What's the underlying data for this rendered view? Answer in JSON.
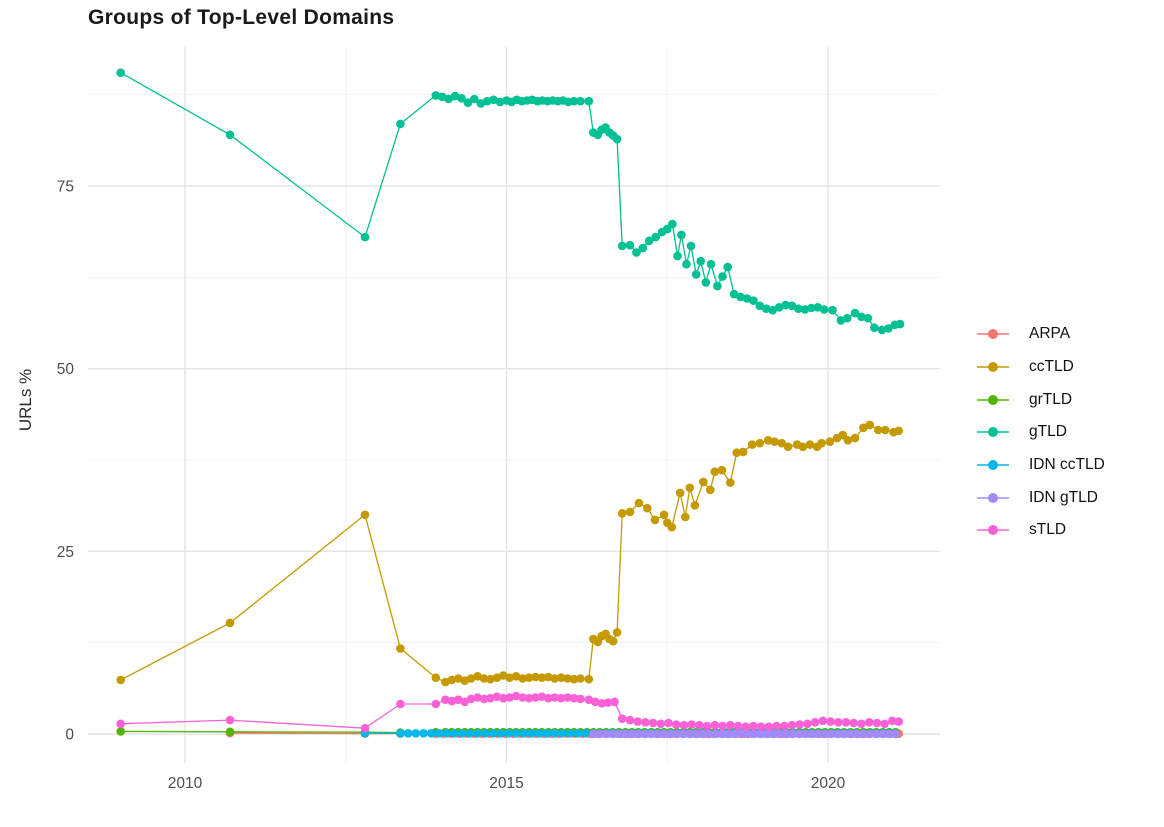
{
  "chart_data": {
    "type": "line",
    "title": "Groups of Top-Level Domains",
    "xlabel": "",
    "ylabel": "URLs %",
    "axes": {
      "x_ticks": [
        {
          "v": 2010,
          "label": "2010"
        },
        {
          "v": 2015,
          "label": "2015"
        },
        {
          "v": 2020,
          "label": "2020"
        }
      ],
      "y_ticks": [
        {
          "v": 0,
          "label": "0"
        },
        {
          "v": 25,
          "label": "25"
        },
        {
          "v": 50,
          "label": "50"
        },
        {
          "v": 75,
          "label": "75"
        }
      ],
      "x_minor": [
        2012.5,
        2017.5
      ],
      "y_minor": [
        12.5,
        37.5,
        62.5,
        87.5
      ],
      "x_domain": [
        2008.5,
        2021.8
      ],
      "y_domain": [
        -4,
        94
      ],
      "grid": "on",
      "legend_position": "right"
    },
    "series": [
      {
        "name": "ARPA",
        "slug": "arpa",
        "color": "#F8766D",
        "points": [
          [
            2010.7,
            0.12
          ],
          [
            2012.8,
            0.06
          ],
          [
            2013.35,
            0.05
          ]
        ],
        "flat_tail": {
          "from": 2013.9,
          "to": 2021.1,
          "step": 0.12,
          "value": 0.04
        }
      },
      {
        "name": "ccTLD",
        "slug": "cctld",
        "color": "#C49A00",
        "points": [
          [
            2009.0,
            7.4
          ],
          [
            2010.7,
            15.2
          ],
          [
            2012.8,
            30.0
          ],
          [
            2013.35,
            11.7
          ],
          [
            2013.9,
            7.7
          ],
          [
            2014.05,
            7.1
          ],
          [
            2014.15,
            7.4
          ],
          [
            2014.25,
            7.6
          ],
          [
            2014.35,
            7.3
          ],
          [
            2014.45,
            7.6
          ],
          [
            2014.55,
            7.9
          ],
          [
            2014.65,
            7.6
          ],
          [
            2014.75,
            7.5
          ],
          [
            2014.85,
            7.7
          ],
          [
            2014.95,
            8.0
          ],
          [
            2015.05,
            7.7
          ],
          [
            2015.15,
            7.9
          ],
          [
            2015.25,
            7.6
          ],
          [
            2015.35,
            7.7
          ],
          [
            2015.45,
            7.8
          ],
          [
            2015.55,
            7.7
          ],
          [
            2015.65,
            7.8
          ],
          [
            2015.75,
            7.6
          ],
          [
            2015.85,
            7.7
          ],
          [
            2015.95,
            7.6
          ],
          [
            2016.05,
            7.5
          ],
          [
            2016.15,
            7.6
          ],
          [
            2016.28,
            7.5
          ],
          [
            2016.35,
            13.0
          ],
          [
            2016.42,
            12.6
          ],
          [
            2016.48,
            13.4
          ],
          [
            2016.54,
            13.7
          ],
          [
            2016.6,
            13.0
          ],
          [
            2016.66,
            12.7
          ],
          [
            2016.72,
            13.9
          ],
          [
            2016.8,
            30.2
          ],
          [
            2016.92,
            30.4
          ],
          [
            2017.06,
            31.6
          ],
          [
            2017.19,
            30.9
          ],
          [
            2017.31,
            29.3
          ],
          [
            2017.45,
            30.0
          ],
          [
            2017.5,
            28.9
          ],
          [
            2017.57,
            28.3
          ],
          [
            2017.7,
            33.0
          ],
          [
            2017.78,
            29.7
          ],
          [
            2017.85,
            33.7
          ],
          [
            2017.93,
            31.3
          ],
          [
            2018.06,
            34.5
          ],
          [
            2018.17,
            33.4
          ],
          [
            2018.24,
            35.9
          ],
          [
            2018.35,
            36.1
          ],
          [
            2018.48,
            34.4
          ],
          [
            2018.58,
            38.5
          ],
          [
            2018.68,
            38.6
          ],
          [
            2018.82,
            39.6
          ],
          [
            2018.94,
            39.8
          ],
          [
            2019.07,
            40.2
          ],
          [
            2019.17,
            40.0
          ],
          [
            2019.28,
            39.8
          ],
          [
            2019.38,
            39.3
          ],
          [
            2019.52,
            39.6
          ],
          [
            2019.61,
            39.3
          ],
          [
            2019.72,
            39.6
          ],
          [
            2019.83,
            39.3
          ],
          [
            2019.9,
            39.8
          ],
          [
            2020.03,
            40.0
          ],
          [
            2020.14,
            40.5
          ],
          [
            2020.23,
            40.9
          ],
          [
            2020.31,
            40.2
          ],
          [
            2020.42,
            40.5
          ],
          [
            2020.55,
            41.9
          ],
          [
            2020.65,
            42.3
          ],
          [
            2020.78,
            41.6
          ],
          [
            2020.89,
            41.6
          ],
          [
            2021.02,
            41.3
          ],
          [
            2021.1,
            41.5
          ]
        ]
      },
      {
        "name": "grTLD",
        "slug": "grtld",
        "color": "#53B400",
        "points": [
          [
            2009.0,
            0.35
          ],
          [
            2010.7,
            0.3
          ],
          [
            2012.8,
            0.25
          ],
          [
            2013.35,
            0.2
          ],
          [
            2013.9,
            0.25
          ]
        ],
        "flat_tail": {
          "from": 2014.05,
          "to": 2021.1,
          "step": 0.1,
          "value": 0.25
        }
      },
      {
        "name": "gTLD",
        "slug": "gtld",
        "color": "#00C094",
        "points": [
          [
            2009.0,
            90.5
          ],
          [
            2010.7,
            82.0
          ],
          [
            2012.8,
            68.0
          ],
          [
            2013.35,
            83.5
          ],
          [
            2013.9,
            87.4
          ],
          [
            2014.0,
            87.2
          ],
          [
            2014.1,
            86.9
          ],
          [
            2014.2,
            87.3
          ],
          [
            2014.3,
            87.0
          ],
          [
            2014.4,
            86.4
          ],
          [
            2014.5,
            86.9
          ],
          [
            2014.6,
            86.3
          ],
          [
            2014.7,
            86.6
          ],
          [
            2014.8,
            86.8
          ],
          [
            2014.9,
            86.5
          ],
          [
            2015.0,
            86.7
          ],
          [
            2015.08,
            86.5
          ],
          [
            2015.16,
            86.8
          ],
          [
            2015.24,
            86.6
          ],
          [
            2015.32,
            86.7
          ],
          [
            2015.4,
            86.8
          ],
          [
            2015.48,
            86.6
          ],
          [
            2015.56,
            86.7
          ],
          [
            2015.64,
            86.6
          ],
          [
            2015.72,
            86.7
          ],
          [
            2015.8,
            86.6
          ],
          [
            2015.88,
            86.7
          ],
          [
            2015.96,
            86.5
          ],
          [
            2016.05,
            86.6
          ],
          [
            2016.15,
            86.6
          ],
          [
            2016.28,
            86.6
          ],
          [
            2016.35,
            82.3
          ],
          [
            2016.42,
            82.0
          ],
          [
            2016.48,
            82.7
          ],
          [
            2016.54,
            83.0
          ],
          [
            2016.6,
            82.3
          ],
          [
            2016.66,
            81.9
          ],
          [
            2016.72,
            81.4
          ],
          [
            2016.8,
            66.8
          ],
          [
            2016.92,
            66.9
          ],
          [
            2017.02,
            65.9
          ],
          [
            2017.12,
            66.5
          ],
          [
            2017.22,
            67.5
          ],
          [
            2017.32,
            68.0
          ],
          [
            2017.42,
            68.7
          ],
          [
            2017.5,
            69.1
          ],
          [
            2017.58,
            69.8
          ],
          [
            2017.66,
            65.4
          ],
          [
            2017.72,
            68.3
          ],
          [
            2017.8,
            64.3
          ],
          [
            2017.87,
            66.8
          ],
          [
            2017.95,
            62.9
          ],
          [
            2018.02,
            64.7
          ],
          [
            2018.1,
            61.8
          ],
          [
            2018.18,
            64.3
          ],
          [
            2018.28,
            61.3
          ],
          [
            2018.36,
            62.6
          ],
          [
            2018.44,
            63.9
          ],
          [
            2018.54,
            60.2
          ],
          [
            2018.64,
            59.8
          ],
          [
            2018.74,
            59.6
          ],
          [
            2018.84,
            59.3
          ],
          [
            2018.94,
            58.6
          ],
          [
            2019.04,
            58.2
          ],
          [
            2019.14,
            58.0
          ],
          [
            2019.24,
            58.4
          ],
          [
            2019.34,
            58.7
          ],
          [
            2019.44,
            58.6
          ],
          [
            2019.54,
            58.2
          ],
          [
            2019.64,
            58.1
          ],
          [
            2019.74,
            58.3
          ],
          [
            2019.84,
            58.4
          ],
          [
            2019.94,
            58.1
          ],
          [
            2020.07,
            58.0
          ],
          [
            2020.2,
            56.6
          ],
          [
            2020.3,
            56.9
          ],
          [
            2020.42,
            57.6
          ],
          [
            2020.52,
            57.1
          ],
          [
            2020.62,
            56.9
          ],
          [
            2020.72,
            55.6
          ],
          [
            2020.84,
            55.3
          ],
          [
            2020.94,
            55.5
          ],
          [
            2021.04,
            56.0
          ],
          [
            2021.12,
            56.1
          ]
        ]
      },
      {
        "name": "IDN ccTLD",
        "slug": "idn-cctld",
        "color": "#00B6EB",
        "points": [
          [
            2012.8,
            0.1
          ]
        ],
        "flat_tail": {
          "from": 2013.35,
          "to": 2021.1,
          "step": 0.12,
          "value": 0.1
        }
      },
      {
        "name": "IDN gTLD",
        "slug": "idn-gtld",
        "color": "#A58AFF",
        "points": [],
        "flat_tail": {
          "from": 2016.35,
          "to": 2021.1,
          "step": 0.1,
          "value": 0.02
        }
      },
      {
        "name": "sTLD",
        "slug": "stld",
        "color": "#FB61D7",
        "points": [
          [
            2009.0,
            1.4
          ],
          [
            2010.7,
            1.9
          ],
          [
            2012.8,
            0.8
          ],
          [
            2013.35,
            4.1
          ],
          [
            2013.9,
            4.1
          ],
          [
            2014.05,
            4.7
          ],
          [
            2014.15,
            4.5
          ],
          [
            2014.25,
            4.7
          ],
          [
            2014.35,
            4.4
          ],
          [
            2014.45,
            4.8
          ],
          [
            2014.55,
            5.0
          ],
          [
            2014.65,
            4.8
          ],
          [
            2014.75,
            4.9
          ],
          [
            2014.85,
            5.1
          ],
          [
            2014.95,
            4.9
          ],
          [
            2015.05,
            5.0
          ],
          [
            2015.15,
            5.2
          ],
          [
            2015.25,
            5.0
          ],
          [
            2015.35,
            4.9
          ],
          [
            2015.45,
            5.0
          ],
          [
            2015.55,
            5.1
          ],
          [
            2015.65,
            4.9
          ],
          [
            2015.75,
            5.0
          ],
          [
            2015.85,
            4.9
          ],
          [
            2015.95,
            5.0
          ],
          [
            2016.05,
            4.9
          ],
          [
            2016.15,
            4.8
          ],
          [
            2016.28,
            4.7
          ],
          [
            2016.38,
            4.4
          ],
          [
            2016.48,
            4.2
          ],
          [
            2016.58,
            4.3
          ],
          [
            2016.68,
            4.4
          ],
          [
            2016.8,
            2.1
          ],
          [
            2016.92,
            1.9
          ],
          [
            2017.04,
            1.7
          ],
          [
            2017.16,
            1.6
          ],
          [
            2017.28,
            1.5
          ],
          [
            2017.4,
            1.4
          ],
          [
            2017.52,
            1.5
          ],
          [
            2017.64,
            1.3
          ],
          [
            2017.76,
            1.2
          ],
          [
            2017.88,
            1.3
          ],
          [
            2018.0,
            1.2
          ],
          [
            2018.12,
            1.1
          ],
          [
            2018.24,
            1.2
          ],
          [
            2018.36,
            1.1
          ],
          [
            2018.48,
            1.2
          ],
          [
            2018.6,
            1.1
          ],
          [
            2018.72,
            1.0
          ],
          [
            2018.84,
            1.1
          ],
          [
            2018.96,
            1.0
          ],
          [
            2019.08,
            1.0
          ],
          [
            2019.2,
            1.1
          ],
          [
            2019.32,
            1.1
          ],
          [
            2019.44,
            1.2
          ],
          [
            2019.56,
            1.3
          ],
          [
            2019.68,
            1.4
          ],
          [
            2019.8,
            1.6
          ],
          [
            2019.92,
            1.8
          ],
          [
            2020.04,
            1.7
          ],
          [
            2020.16,
            1.6
          ],
          [
            2020.28,
            1.6
          ],
          [
            2020.4,
            1.5
          ],
          [
            2020.52,
            1.4
          ],
          [
            2020.64,
            1.6
          ],
          [
            2020.76,
            1.5
          ],
          [
            2020.88,
            1.4
          ],
          [
            2021.0,
            1.8
          ],
          [
            2021.1,
            1.7
          ]
        ]
      }
    ],
    "style": {
      "grid_major_color": "#E4E4E4",
      "grid_minor_color": "#F0F0F0",
      "tick_label_color": "#4D4D4D",
      "background": "#FFFFFF"
    }
  }
}
